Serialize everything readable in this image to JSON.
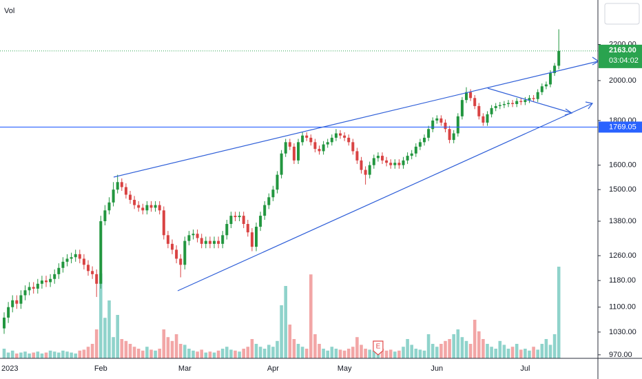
{
  "chart_data": {
    "type": "candlestick",
    "volume_label": "Vol",
    "categories": [
      "2023",
      null,
      null,
      null,
      null,
      null,
      null,
      null,
      null,
      null,
      null,
      null,
      null,
      null,
      null,
      null,
      null,
      null,
      null,
      null,
      null,
      null,
      null,
      "Feb",
      null,
      null,
      null,
      null,
      null,
      null,
      null,
      null,
      null,
      null,
      null,
      null,
      null,
      null,
      null,
      null,
      null,
      null,
      null,
      "Mar",
      null,
      null,
      null,
      null,
      null,
      null,
      null,
      null,
      null,
      null,
      null,
      null,
      null,
      null,
      null,
      null,
      null,
      null,
      null,
      null,
      "Apr",
      null,
      null,
      null,
      null,
      null,
      null,
      null,
      null,
      null,
      null,
      null,
      null,
      null,
      null,
      null,
      null,
      "May",
      null,
      null,
      null,
      null,
      null,
      null,
      null,
      null,
      null,
      null,
      null,
      null,
      null,
      null,
      null,
      null,
      null,
      null,
      null,
      null,
      null,
      "Jun",
      null,
      null,
      null,
      null,
      null,
      null,
      null,
      null,
      null,
      null,
      null,
      null,
      null,
      null,
      null,
      null,
      null,
      null,
      null,
      null,
      "Jul",
      null,
      null,
      null,
      null,
      null,
      null,
      null,
      null
    ],
    "open": [
      1040,
      1070,
      1100,
      1120,
      1110,
      1135,
      1150,
      1160,
      1155,
      1170,
      1180,
      1175,
      1185,
      1200,
      1220,
      1240,
      1250,
      1255,
      1265,
      1250,
      1230,
      1210,
      1200,
      1170,
      1380,
      1420,
      1450,
      1500,
      1530,
      1510,
      1480,
      1460,
      1440,
      1430,
      1420,
      1440,
      1430,
      1440,
      1420,
      1330,
      1300,
      1280,
      1250,
      1230,
      1310,
      1330,
      1335,
      1320,
      1300,
      1310,
      1300,
      1310,
      1300,
      1330,
      1370,
      1400,
      1395,
      1400,
      1370,
      1340,
      1290,
      1360,
      1400,
      1440,
      1470,
      1500,
      1560,
      1650,
      1700,
      1680,
      1620,
      1700,
      1730,
      1720,
      1700,
      1670,
      1660,
      1690,
      1700,
      1720,
      1740,
      1730,
      1720,
      1700,
      1660,
      1620,
      1580,
      1560,
      1600,
      1630,
      1640,
      1620,
      1610,
      1600,
      1610,
      1600,
      1620,
      1640,
      1650,
      1680,
      1700,
      1720,
      1760,
      1800,
      1810,
      1790,
      1760,
      1710,
      1740,
      1820,
      1900,
      1940,
      1910,
      1870,
      1820,
      1790,
      1830,
      1860,
      1870,
      1875,
      1880,
      1885,
      1880,
      1895,
      1890,
      1900,
      1910,
      1905,
      1940,
      1970,
      1980,
      2040,
      2080
    ],
    "high": [
      1085,
      1115,
      1135,
      1135,
      1150,
      1165,
      1175,
      1175,
      1185,
      1195,
      1195,
      1200,
      1215,
      1235,
      1255,
      1265,
      1270,
      1280,
      1280,
      1265,
      1245,
      1225,
      1215,
      1400,
      1440,
      1470,
      1530,
      1560,
      1545,
      1525,
      1495,
      1475,
      1455,
      1445,
      1455,
      1455,
      1455,
      1455,
      1435,
      1345,
      1315,
      1295,
      1265,
      1325,
      1345,
      1350,
      1350,
      1335,
      1325,
      1325,
      1325,
      1325,
      1345,
      1385,
      1415,
      1415,
      1415,
      1415,
      1385,
      1355,
      1375,
      1415,
      1455,
      1485,
      1515,
      1575,
      1665,
      1715,
      1715,
      1695,
      1715,
      1745,
      1745,
      1735,
      1715,
      1685,
      1705,
      1715,
      1735,
      1760,
      1755,
      1745,
      1735,
      1715,
      1675,
      1635,
      1595,
      1615,
      1645,
      1655,
      1655,
      1635,
      1625,
      1625,
      1625,
      1635,
      1655,
      1665,
      1695,
      1715,
      1735,
      1775,
      1815,
      1825,
      1825,
      1805,
      1775,
      1755,
      1835,
      1915,
      1965,
      1955,
      1925,
      1885,
      1835,
      1845,
      1875,
      1885,
      1890,
      1895,
      1900,
      1900,
      1910,
      1910,
      1915,
      1925,
      1925,
      1955,
      1985,
      1995,
      2055,
      2095,
      2290
    ],
    "low": [
      1025,
      1055,
      1085,
      1095,
      1095,
      1120,
      1135,
      1140,
      1140,
      1155,
      1160,
      1160,
      1170,
      1185,
      1205,
      1225,
      1235,
      1240,
      1235,
      1215,
      1195,
      1185,
      1130,
      1155,
      1365,
      1405,
      1435,
      1485,
      1495,
      1465,
      1445,
      1425,
      1415,
      1405,
      1405,
      1415,
      1415,
      1405,
      1315,
      1285,
      1265,
      1235,
      1190,
      1215,
      1295,
      1315,
      1305,
      1285,
      1285,
      1285,
      1285,
      1285,
      1285,
      1315,
      1355,
      1380,
      1380,
      1355,
      1325,
      1275,
      1275,
      1345,
      1385,
      1425,
      1455,
      1485,
      1545,
      1635,
      1665,
      1605,
      1605,
      1685,
      1705,
      1685,
      1655,
      1645,
      1645,
      1675,
      1685,
      1705,
      1715,
      1705,
      1685,
      1645,
      1605,
      1565,
      1520,
      1545,
      1585,
      1615,
      1605,
      1595,
      1585,
      1585,
      1585,
      1585,
      1605,
      1625,
      1635,
      1665,
      1685,
      1705,
      1745,
      1785,
      1775,
      1745,
      1695,
      1695,
      1725,
      1805,
      1885,
      1895,
      1855,
      1805,
      1775,
      1775,
      1815,
      1845,
      1855,
      1860,
      1865,
      1865,
      1865,
      1875,
      1875,
      1885,
      1890,
      1890,
      1925,
      1955,
      1965,
      2025,
      2060
    ],
    "close": [
      1070,
      1100,
      1120,
      1110,
      1135,
      1150,
      1160,
      1155,
      1170,
      1180,
      1175,
      1185,
      1200,
      1220,
      1240,
      1250,
      1255,
      1265,
      1250,
      1230,
      1210,
      1200,
      1170,
      1380,
      1420,
      1450,
      1500,
      1530,
      1510,
      1480,
      1460,
      1440,
      1430,
      1420,
      1440,
      1430,
      1440,
      1420,
      1330,
      1300,
      1280,
      1250,
      1230,
      1310,
      1330,
      1335,
      1320,
      1300,
      1310,
      1300,
      1310,
      1300,
      1330,
      1370,
      1400,
      1395,
      1400,
      1370,
      1340,
      1290,
      1360,
      1400,
      1440,
      1470,
      1500,
      1560,
      1650,
      1700,
      1680,
      1620,
      1700,
      1730,
      1720,
      1700,
      1670,
      1660,
      1690,
      1700,
      1720,
      1740,
      1730,
      1720,
      1700,
      1660,
      1620,
      1580,
      1560,
      1600,
      1630,
      1640,
      1620,
      1610,
      1600,
      1610,
      1600,
      1620,
      1640,
      1650,
      1680,
      1700,
      1720,
      1760,
      1800,
      1810,
      1790,
      1760,
      1710,
      1740,
      1820,
      1900,
      1940,
      1910,
      1870,
      1820,
      1790,
      1830,
      1860,
      1870,
      1875,
      1880,
      1885,
      1880,
      1895,
      1890,
      1900,
      1910,
      1905,
      1940,
      1970,
      1980,
      2040,
      2080,
      2163
    ],
    "volume": [
      10,
      6,
      8,
      5,
      6,
      7,
      5,
      6,
      7,
      5,
      6,
      8,
      7,
      6,
      8,
      7,
      6,
      5,
      8,
      9,
      12,
      15,
      30,
      88,
      42,
      60,
      22,
      45,
      20,
      18,
      15,
      12,
      10,
      8,
      12,
      9,
      8,
      10,
      30,
      22,
      18,
      25,
      15,
      14,
      10,
      8,
      7,
      9,
      6,
      7,
      6,
      8,
      10,
      12,
      9,
      8,
      7,
      10,
      12,
      20,
      15,
      12,
      10,
      14,
      12,
      18,
      55,
      75,
      35,
      20,
      15,
      12,
      10,
      87,
      25,
      15,
      10,
      8,
      12,
      10,
      9,
      8,
      10,
      12,
      22,
      14,
      10,
      9,
      8,
      15,
      10,
      8,
      9,
      7,
      8,
      12,
      20,
      14,
      10,
      9,
      8,
      25,
      15,
      12,
      15,
      18,
      20,
      25,
      30,
      22,
      18,
      15,
      40,
      28,
      20,
      15,
      12,
      10,
      18,
      14,
      10,
      12,
      15,
      9,
      10,
      8,
      12,
      9,
      15,
      20,
      14,
      25,
      95
    ],
    "vlim": [
      0,
      100
    ],
    "ylim": [
      961,
      2474
    ],
    "ylog": true,
    "yticks": [
      {
        "value": 970,
        "label": "970.00"
      },
      {
        "value": 1030,
        "label": "1030.00"
      },
      {
        "value": 1100,
        "label": "1100.00"
      },
      {
        "value": 1180,
        "label": "1180.00"
      },
      {
        "value": 1260,
        "label": "1260.00"
      },
      {
        "value": 1380,
        "label": "1380.00"
      },
      {
        "value": 1500,
        "label": "1500.00"
      },
      {
        "value": 1600,
        "label": "1600.00"
      },
      {
        "value": 1800,
        "label": "1800.00"
      },
      {
        "value": 2000,
        "label": "2000.00"
      },
      {
        "value": 2200,
        "label": "2200.00"
      }
    ],
    "up_color": "#22963f",
    "down_color": "#d94343",
    "volume_up_color": "#8fd3cb",
    "volume_down_color": "#f2a6a6",
    "last_price": {
      "value": 2163,
      "label": "2163.00",
      "countdown": "03:04:02",
      "color": "#2aa34f"
    },
    "hline": {
      "value": 1769.05,
      "color": "#2962ff"
    },
    "events": [
      {
        "label": "E",
        "index": 89
      }
    ]
  }
}
